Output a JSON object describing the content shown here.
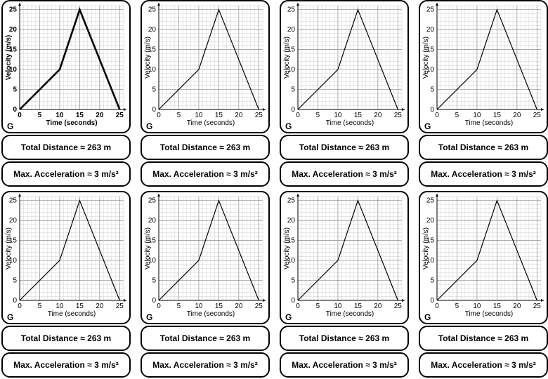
{
  "cards": [
    {
      "label": "G",
      "distance": "Total Distance ≈ 263 m",
      "acceleration": "Max. Acceleration ≈ 3 m/s²"
    },
    {
      "label": "G",
      "distance": "Total Distance ≈ 263 m",
      "acceleration": "Max. Acceleration ≈ 3 m/s²"
    },
    {
      "label": "G",
      "distance": "Total Distance ≈ 263 m",
      "acceleration": "Max. Acceleration ≈ 3 m/s²"
    },
    {
      "label": "G",
      "distance": "Total Distance ≈ 263 m",
      "acceleration": "Max. Acceleration ≈ 3 m/s²"
    },
    {
      "label": "G",
      "distance": "Total Distance ≈ 263 m",
      "acceleration": "Max. Acceleration ≈ 3 m/s²"
    },
    {
      "label": "G",
      "distance": "Total Distance ≈ 263 m",
      "acceleration": "Max. Acceleration ≈ 3 m/s²"
    },
    {
      "label": "G",
      "distance": "Total Distance ≈ 263 m",
      "acceleration": "Max. Acceleration ≈ 3 m/s²"
    },
    {
      "label": "G",
      "distance": "Total Distance ≈ 263 m",
      "acceleration": "Max. Acceleration ≈ 3 m/s²"
    }
  ],
  "chart_data": {
    "type": "line",
    "title": "",
    "xlabel": "Time (seconds)",
    "ylabel": "Velocity (m/s)",
    "x": [
      0,
      10,
      15,
      25
    ],
    "y": [
      0,
      10,
      25,
      0
    ],
    "xlim": [
      0,
      26
    ],
    "ylim": [
      0,
      26
    ],
    "xticks": [
      0,
      5,
      10,
      15,
      20,
      25
    ],
    "yticks": [
      0,
      5,
      10,
      15,
      20,
      25
    ],
    "grid": true,
    "legend": "none"
  }
}
